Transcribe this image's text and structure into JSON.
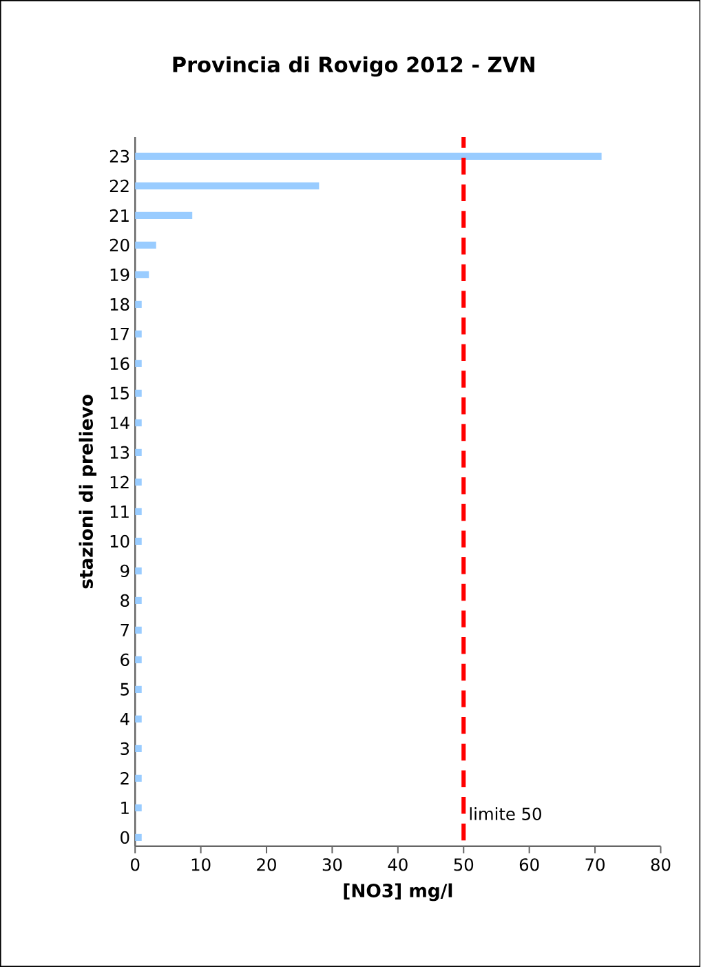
{
  "chart_data": {
    "type": "bar",
    "orientation": "horizontal",
    "title": "Provincia di Rovigo 2012 - ZVN",
    "xlabel": "[NO3] mg/l",
    "ylabel": "stazioni di prelievo",
    "categories": [
      "23",
      "22",
      "21",
      "20",
      "19",
      "18",
      "17",
      "16",
      "15",
      "14",
      "13",
      "12",
      "11",
      "10",
      "9",
      "8",
      "7",
      "6",
      "5",
      "4",
      "3",
      "2",
      "1",
      "0"
    ],
    "values": [
      71,
      28,
      8.7,
      3.2,
      2.1,
      1,
      1,
      1,
      1,
      1,
      1,
      1,
      1,
      1,
      1,
      1,
      1,
      1,
      1,
      1,
      1,
      1,
      1,
      1
    ],
    "color": "#99ccff",
    "xlim": [
      0,
      80
    ],
    "xticks": [
      0,
      10,
      20,
      30,
      40,
      50,
      60,
      70,
      80
    ],
    "ref_lines": [
      {
        "axis": "x",
        "value": 50,
        "label": "limite 50",
        "color": "#ff0000",
        "line_style": "dashed"
      }
    ],
    "grid": false
  }
}
